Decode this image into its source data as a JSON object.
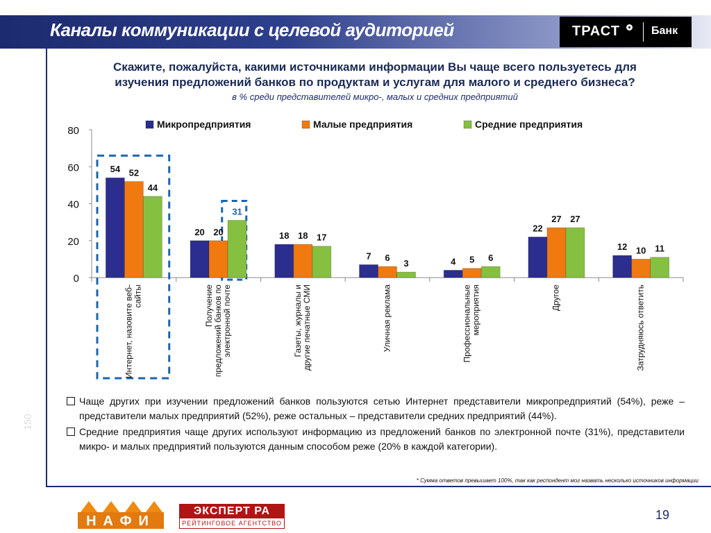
{
  "header": {
    "title": "Каналы коммуникации с целевой аудиторией",
    "logo_main": "ТРАСТ",
    "logo_bank": "Банк"
  },
  "question": {
    "line1": "Скажите, пожалуйста, какими источниками информации Вы чаще всего пользуетесь для",
    "line2": "изучения предложений банков по продуктам и услугам для малого и среднего бизнеса?",
    "sub": "в % среди представителей микро-, малых и средних предприятий"
  },
  "chart_data": {
    "type": "bar",
    "categories": [
      [
        "Интернет, назовите веб-",
        "сайты"
      ],
      [
        "Получение",
        "предложений банков по",
        "электронной почте"
      ],
      [
        "Газеты, журналы и",
        "другие печатные СМИ"
      ],
      [
        "Уличная реклама"
      ],
      [
        "Профессиональные",
        "мероприятия"
      ],
      [
        "Другое"
      ],
      [
        "Затрудняюсь ответить"
      ]
    ],
    "series": [
      {
        "name": "Микропредприятия",
        "color": "#2b2d8f",
        "values": [
          54,
          20,
          18,
          7,
          4,
          22,
          12
        ]
      },
      {
        "name": "Малые предприятия",
        "color": "#f07a10",
        "values": [
          52,
          20,
          18,
          6,
          5,
          27,
          10
        ]
      },
      {
        "name": "Средние предприятия",
        "color": "#86c040",
        "values": [
          44,
          31,
          17,
          3,
          6,
          27,
          11
        ]
      }
    ],
    "ylim": [
      0,
      80
    ],
    "yticks": [
      0,
      20,
      40,
      60,
      80
    ],
    "highlight_label_color": "#2060b0",
    "legend_position": "top"
  },
  "bullets": [
    "Чаще других при изучении предложений банков пользуются сетью Интернет представители микропредприятий (54%), реже – представители малых предприятий (52%), реже остальных – представители средних предприятий (44%).",
    "Средние предприятия чаще других используют информацию из предложений банков по электронной почте (31%), представители микро- и малых предприятий пользуются данным способом реже (20% в каждой категории)."
  ],
  "footnote": "* Сумма ответов превышает 100%, так как респондент мог назвать несколько источников информации",
  "side_number": "150",
  "footer": {
    "nafi": "НАФИ",
    "expert_top": "ЭКСПЕРТ РА",
    "expert_bottom": "РЕЙТИНГОВОЕ АГЕНТСТВО",
    "page": "19"
  }
}
